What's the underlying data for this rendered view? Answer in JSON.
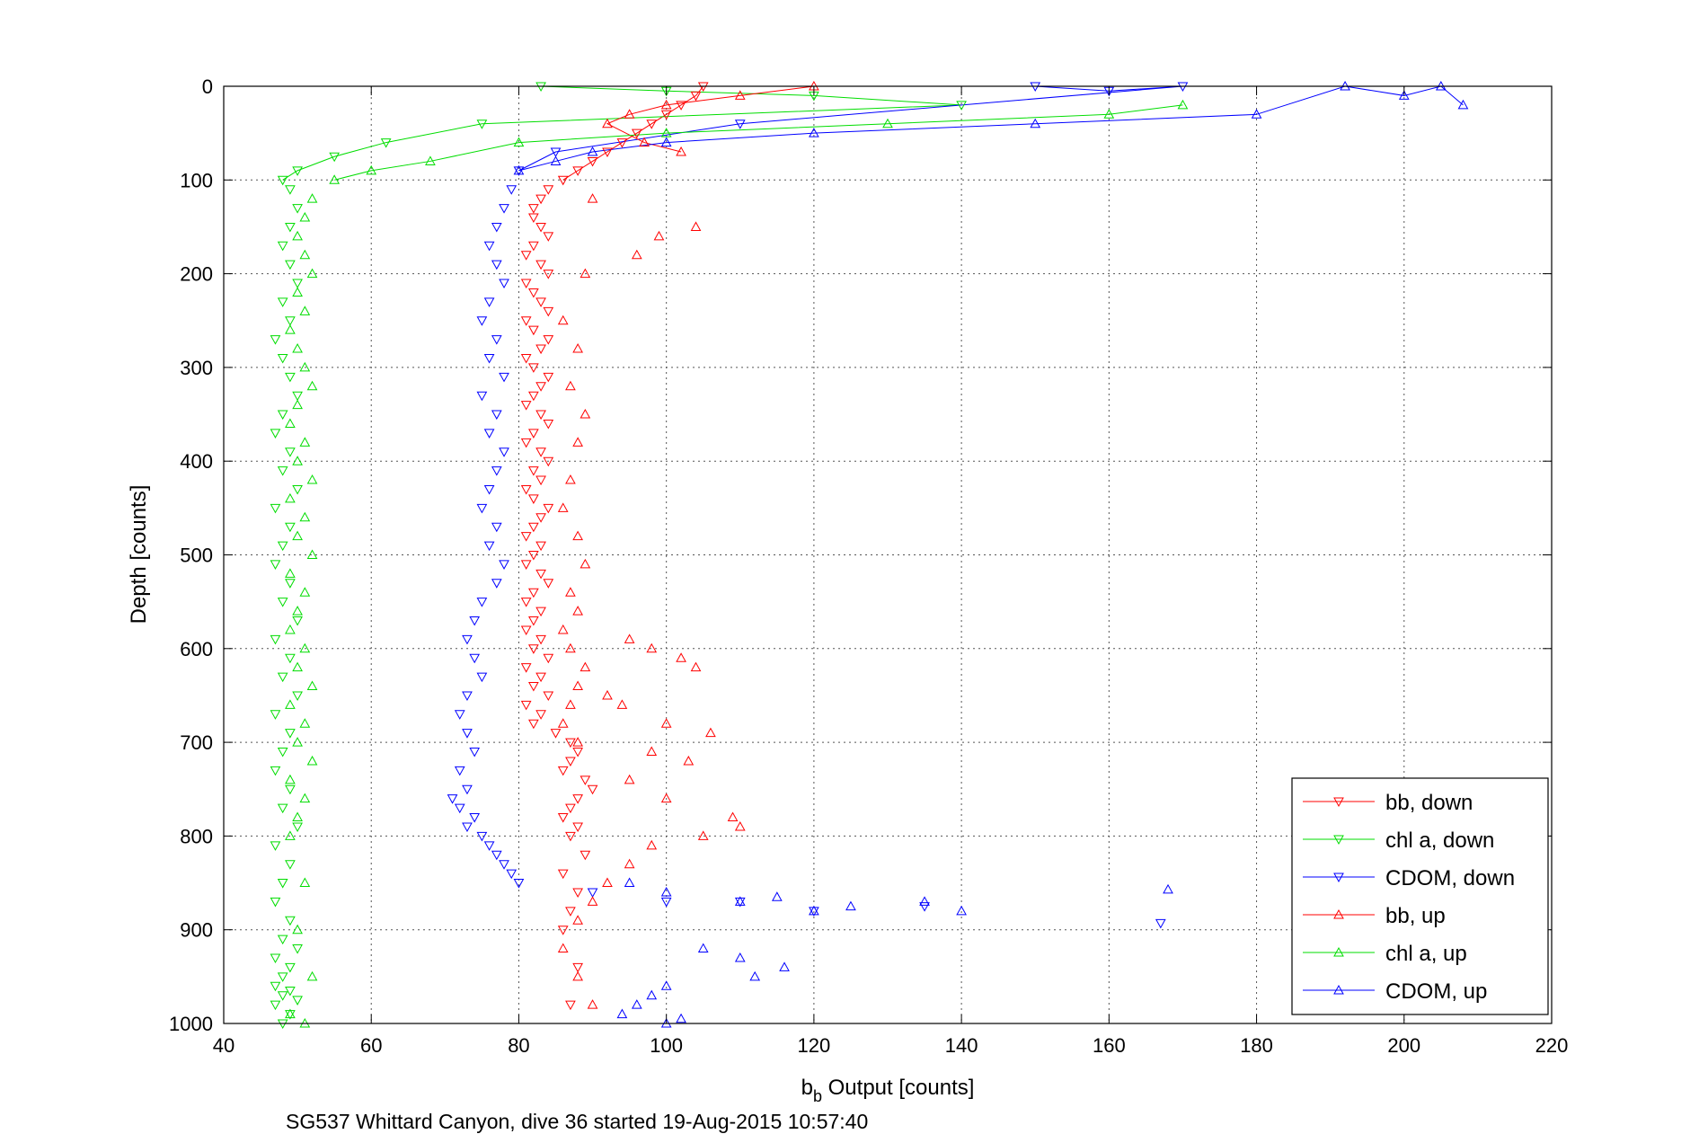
{
  "chart_data": {
    "type": "scatter",
    "title": "",
    "xlabel_main": "b",
    "xlabel_sub": "b",
    "xlabel_rest": " Output [counts]",
    "ylabel": "Depth [counts]",
    "caption": "SG537 Whittard Canyon, dive 36 started 19-Aug-2015 10:57:40",
    "xlim": [
      40,
      220
    ],
    "ylim": [
      0,
      1000
    ],
    "y_reversed": true,
    "grid": true,
    "xticks": [
      40,
      60,
      80,
      100,
      120,
      140,
      160,
      180,
      200,
      220
    ],
    "yticks": [
      0,
      100,
      200,
      300,
      400,
      500,
      600,
      700,
      800,
      900,
      1000
    ],
    "legend_position": "lower-right",
    "series": [
      {
        "name": "bb, down",
        "color": "#ff0000",
        "marker": "triangle-down",
        "x": [
          105,
          104,
          102,
          100,
          98,
          96,
          94,
          92,
          90,
          88,
          86,
          84,
          83,
          82,
          82,
          83,
          84,
          82,
          81,
          83,
          84,
          81,
          82,
          83,
          84,
          81,
          82,
          84,
          83,
          81,
          82,
          84,
          83,
          82,
          81,
          83,
          84,
          82,
          81,
          83,
          84,
          82,
          83,
          81,
          82,
          84,
          83,
          82,
          81,
          83,
          82,
          81,
          83,
          84,
          82,
          81,
          83,
          82,
          81,
          83,
          82,
          84,
          81,
          83,
          82,
          84,
          81,
          83,
          82,
          85,
          87,
          88,
          87,
          86,
          89,
          90,
          88,
          87,
          86,
          88,
          87,
          89,
          86,
          88,
          87,
          86,
          88,
          87
        ],
        "y": [
          0,
          10,
          20,
          30,
          40,
          50,
          60,
          70,
          80,
          90,
          100,
          110,
          120,
          130,
          140,
          150,
          160,
          170,
          180,
          190,
          200,
          210,
          220,
          230,
          240,
          250,
          260,
          270,
          280,
          290,
          300,
          310,
          320,
          330,
          340,
          350,
          360,
          370,
          380,
          390,
          400,
          410,
          420,
          430,
          440,
          450,
          460,
          470,
          480,
          490,
          500,
          510,
          520,
          530,
          540,
          550,
          560,
          570,
          580,
          590,
          600,
          610,
          620,
          630,
          640,
          650,
          660,
          670,
          680,
          690,
          700,
          710,
          720,
          730,
          740,
          750,
          760,
          770,
          780,
          790,
          800,
          820,
          840,
          860,
          880,
          900,
          940,
          980
        ]
      },
      {
        "name": "chl a, down",
        "color": "#00dd00",
        "marker": "triangle-down",
        "x": [
          83,
          100,
          120,
          140,
          75,
          62,
          55,
          50,
          48,
          49,
          50,
          49,
          48,
          49,
          50,
          48,
          49,
          47,
          48,
          49,
          50,
          48,
          47,
          49,
          48,
          50,
          47,
          49,
          48,
          47,
          49,
          48,
          50,
          47,
          49,
          48,
          50,
          47,
          49,
          48,
          47,
          49,
          48,
          50,
          47,
          49,
          48,
          47,
          49,
          48,
          50,
          47,
          49,
          48,
          47,
          49,
          48,
          50,
          47,
          49,
          48
        ],
        "y": [
          0,
          5,
          10,
          20,
          40,
          60,
          75,
          90,
          100,
          110,
          130,
          150,
          170,
          190,
          210,
          230,
          250,
          270,
          290,
          310,
          330,
          350,
          370,
          390,
          410,
          430,
          450,
          470,
          490,
          510,
          530,
          550,
          570,
          590,
          610,
          630,
          650,
          670,
          690,
          710,
          730,
          750,
          770,
          790,
          810,
          830,
          850,
          870,
          890,
          910,
          920,
          930,
          940,
          950,
          960,
          965,
          970,
          975,
          980,
          990,
          1000
        ]
      },
      {
        "name": "CDOM, down",
        "color": "#0000ff",
        "marker": "triangle-down",
        "x": [
          150,
          160,
          170,
          110,
          85,
          80,
          79,
          78,
          77,
          76,
          77,
          78,
          76,
          75,
          77,
          76,
          78,
          75,
          77,
          76,
          78,
          77,
          76,
          75,
          77,
          76,
          78,
          77,
          75,
          74,
          73,
          74,
          75,
          73,
          72,
          73,
          74,
          72,
          73,
          71,
          72,
          74,
          73,
          75,
          76,
          77,
          78,
          79,
          80,
          90,
          100,
          110,
          120,
          135,
          167
        ],
        "y": [
          0,
          5,
          0,
          40,
          70,
          90,
          110,
          130,
          150,
          170,
          190,
          210,
          230,
          250,
          270,
          290,
          310,
          330,
          350,
          370,
          390,
          410,
          430,
          450,
          470,
          490,
          510,
          530,
          550,
          570,
          590,
          610,
          630,
          650,
          670,
          690,
          710,
          730,
          750,
          760,
          770,
          780,
          790,
          800,
          810,
          820,
          830,
          840,
          850,
          860,
          870,
          870,
          880,
          875,
          893
        ]
      },
      {
        "name": "bb, up",
        "color": "#ff0000",
        "marker": "triangle-up",
        "x": [
          120,
          110,
          100,
          95,
          92,
          97,
          102,
          104,
          99,
          96,
          90,
          89,
          86,
          88,
          87,
          89,
          88,
          87,
          86,
          88,
          89,
          87,
          88,
          86,
          87,
          89,
          88,
          87,
          86,
          88,
          95,
          98,
          102,
          104,
          92,
          94,
          100,
          106,
          98,
          103,
          95,
          100,
          109,
          110,
          105,
          98,
          95,
          92,
          90,
          88,
          86,
          88,
          90
        ],
        "y": [
          0,
          10,
          20,
          30,
          40,
          60,
          70,
          150,
          160,
          180,
          120,
          200,
          250,
          280,
          320,
          350,
          380,
          420,
          450,
          480,
          510,
          540,
          560,
          580,
          600,
          620,
          640,
          660,
          680,
          700,
          590,
          600,
          610,
          620,
          650,
          660,
          680,
          690,
          710,
          720,
          740,
          760,
          780,
          790,
          800,
          810,
          830,
          850,
          870,
          890,
          920,
          950,
          980
        ]
      },
      {
        "name": "chl a, up",
        "color": "#00dd00",
        "marker": "triangle-up",
        "x": [
          170,
          160,
          130,
          100,
          80,
          68,
          60,
          55,
          52,
          51,
          50,
          51,
          52,
          50,
          51,
          49,
          50,
          51,
          52,
          50,
          49,
          51,
          50,
          52,
          49,
          51,
          50,
          52,
          49,
          51,
          50,
          49,
          51,
          50,
          52,
          49,
          51,
          50,
          52,
          49,
          51,
          50,
          49,
          51,
          50,
          52,
          49,
          51
        ],
        "y": [
          20,
          30,
          40,
          50,
          60,
          80,
          90,
          100,
          120,
          140,
          160,
          180,
          200,
          220,
          240,
          260,
          280,
          300,
          320,
          340,
          360,
          380,
          400,
          420,
          440,
          460,
          480,
          500,
          520,
          540,
          560,
          580,
          600,
          620,
          640,
          660,
          680,
          700,
          720,
          740,
          760,
          780,
          800,
          850,
          900,
          950,
          990,
          1000
        ]
      },
      {
        "name": "CDOM, up",
        "color": "#0000ff",
        "marker": "triangle-up",
        "x": [
          208,
          205,
          200,
          192,
          180,
          150,
          120,
          100,
          90,
          85,
          80,
          95,
          100,
          110,
          115,
          120,
          125,
          135,
          140,
          168,
          105,
          110,
          116,
          112,
          100,
          98,
          96,
          94,
          100,
          102
        ],
        "y": [
          20,
          0,
          10,
          0,
          30,
          40,
          50,
          60,
          70,
          80,
          90,
          850,
          860,
          870,
          865,
          880,
          875,
          870,
          880,
          857,
          920,
          930,
          940,
          950,
          960,
          970,
          980,
          990,
          1000,
          995
        ]
      }
    ]
  }
}
